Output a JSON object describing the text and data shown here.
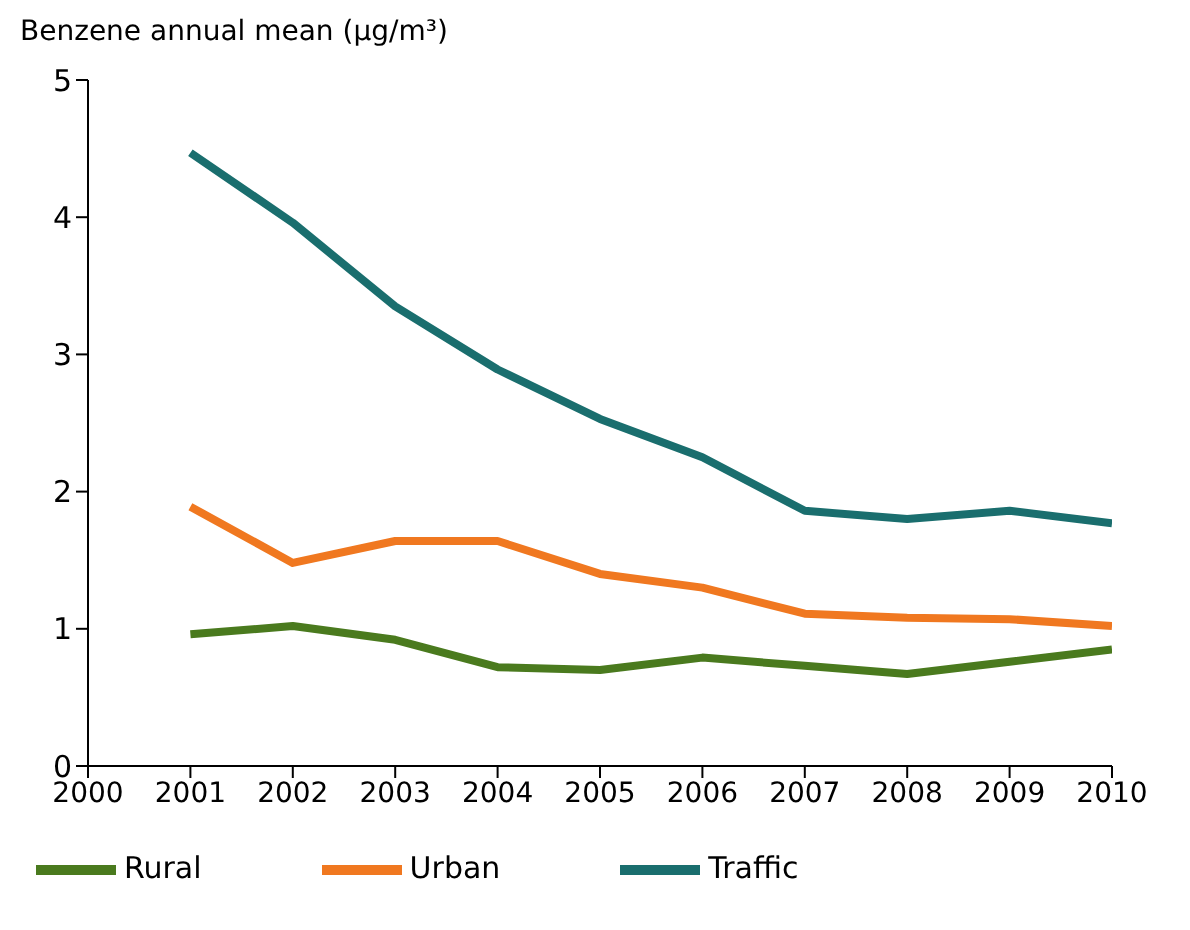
{
  "chart_data": {
    "type": "line",
    "ylabel": "Benzene annual mean (µg/m³)",
    "x": [
      2001,
      2002,
      2003,
      2004,
      2005,
      2006,
      2007,
      2008,
      2009,
      2010
    ],
    "xlim": [
      2000,
      2010
    ],
    "xticks": [
      2000,
      2001,
      2002,
      2003,
      2004,
      2005,
      2006,
      2007,
      2008,
      2009,
      2010
    ],
    "ylim": [
      0,
      5
    ],
    "yticks": [
      0,
      1,
      2,
      3,
      4,
      5
    ],
    "grid": false,
    "legend": "bottom",
    "marker": "none",
    "line_style": "solid",
    "series": [
      {
        "name": "Rural",
        "color": "#4a7a1e",
        "values": [
          0.96,
          1.02,
          0.92,
          0.72,
          0.7,
          0.79,
          0.73,
          0.67,
          0.76,
          0.85
        ]
      },
      {
        "name": "Urban",
        "color": "#f07820",
        "values": [
          1.89,
          1.48,
          1.64,
          1.64,
          1.4,
          1.3,
          1.11,
          1.08,
          1.07,
          1.02
        ]
      },
      {
        "name": "Traffic",
        "color": "#1a6e6e",
        "values": [
          4.47,
          3.96,
          3.35,
          2.89,
          2.53,
          2.25,
          1.86,
          1.8,
          1.86,
          1.77
        ]
      }
    ]
  }
}
